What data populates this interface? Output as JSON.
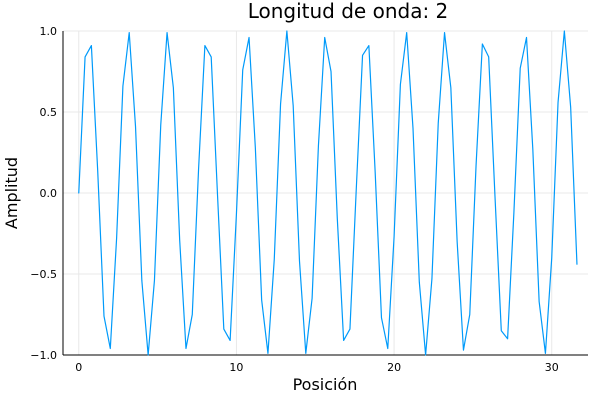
{
  "chart_data": {
    "type": "line",
    "title": "Longitud de onda: 2",
    "xlabel": "Posición",
    "ylabel": "Amplitud",
    "xlim": [
      -1.0,
      32.3
    ],
    "ylim": [
      -1.0,
      1.0
    ],
    "x_ticks": [
      0,
      10,
      20,
      30
    ],
    "y_ticks": [
      -1.0,
      -0.5,
      0.0,
      0.5,
      1.0
    ],
    "x_tick_labels": [
      "0",
      "10",
      "20",
      "30"
    ],
    "y_tick_labels": [
      "−1.0",
      "−0.5",
      "0.0",
      "0.5",
      "1.0"
    ],
    "grid": true,
    "legend": "none",
    "series": [
      {
        "color": "#009AFA",
        "x": [
          0,
          0.4,
          0.8,
          1.2,
          1.6,
          2.0,
          2.4,
          2.8,
          3.2,
          3.6,
          4.0,
          4.4,
          4.8,
          5.2,
          5.6,
          6.0,
          6.4,
          6.8,
          7.2,
          7.6,
          8.0,
          8.4,
          8.8,
          9.2,
          9.6,
          10.0,
          10.4,
          10.8,
          11.2,
          11.6,
          12.0,
          12.4,
          12.8,
          13.2,
          13.6,
          14.0,
          14.4,
          14.8,
          15.2,
          15.6,
          16.0,
          16.4,
          16.8,
          17.2,
          17.6,
          18.0,
          18.4,
          18.8,
          19.2,
          19.6,
          20.0,
          20.4,
          20.8,
          21.2,
          21.6,
          22.0,
          22.4,
          22.8,
          23.2,
          23.6,
          24.0,
          24.4,
          24.8,
          25.2,
          25.6,
          26.0,
          26.4,
          26.8,
          27.2,
          27.6,
          28.0,
          28.4,
          28.8,
          29.2,
          29.6,
          30.0,
          30.4,
          30.8,
          31.2,
          31.6
        ],
        "y": [
          0.0,
          0.84,
          0.91,
          0.14,
          -0.76,
          -0.96,
          -0.28,
          0.66,
          0.99,
          0.41,
          -0.54,
          -1.0,
          -0.54,
          0.42,
          0.99,
          0.65,
          -0.29,
          -0.96,
          -0.75,
          0.15,
          0.91,
          0.84,
          -0.01,
          -0.84,
          -0.91,
          -0.13,
          0.76,
          0.96,
          0.28,
          -0.66,
          -0.99,
          -0.41,
          0.55,
          1.0,
          0.54,
          -0.42,
          -0.99,
          -0.65,
          0.29,
          0.96,
          0.75,
          -0.16,
          -0.91,
          -0.84,
          0.02,
          0.85,
          0.91,
          0.13,
          -0.77,
          -0.96,
          -0.27,
          0.67,
          0.99,
          0.4,
          -0.55,
          -1.0,
          -0.53,
          0.43,
          0.99,
          0.65,
          -0.3,
          -0.97,
          -0.75,
          0.17,
          0.92,
          0.84,
          -0.02,
          -0.85,
          -0.9,
          -0.12,
          0.77,
          0.96,
          0.27,
          -0.67,
          -0.99,
          -0.4,
          0.56,
          1.0,
          0.53,
          -0.44
        ]
      }
    ]
  }
}
